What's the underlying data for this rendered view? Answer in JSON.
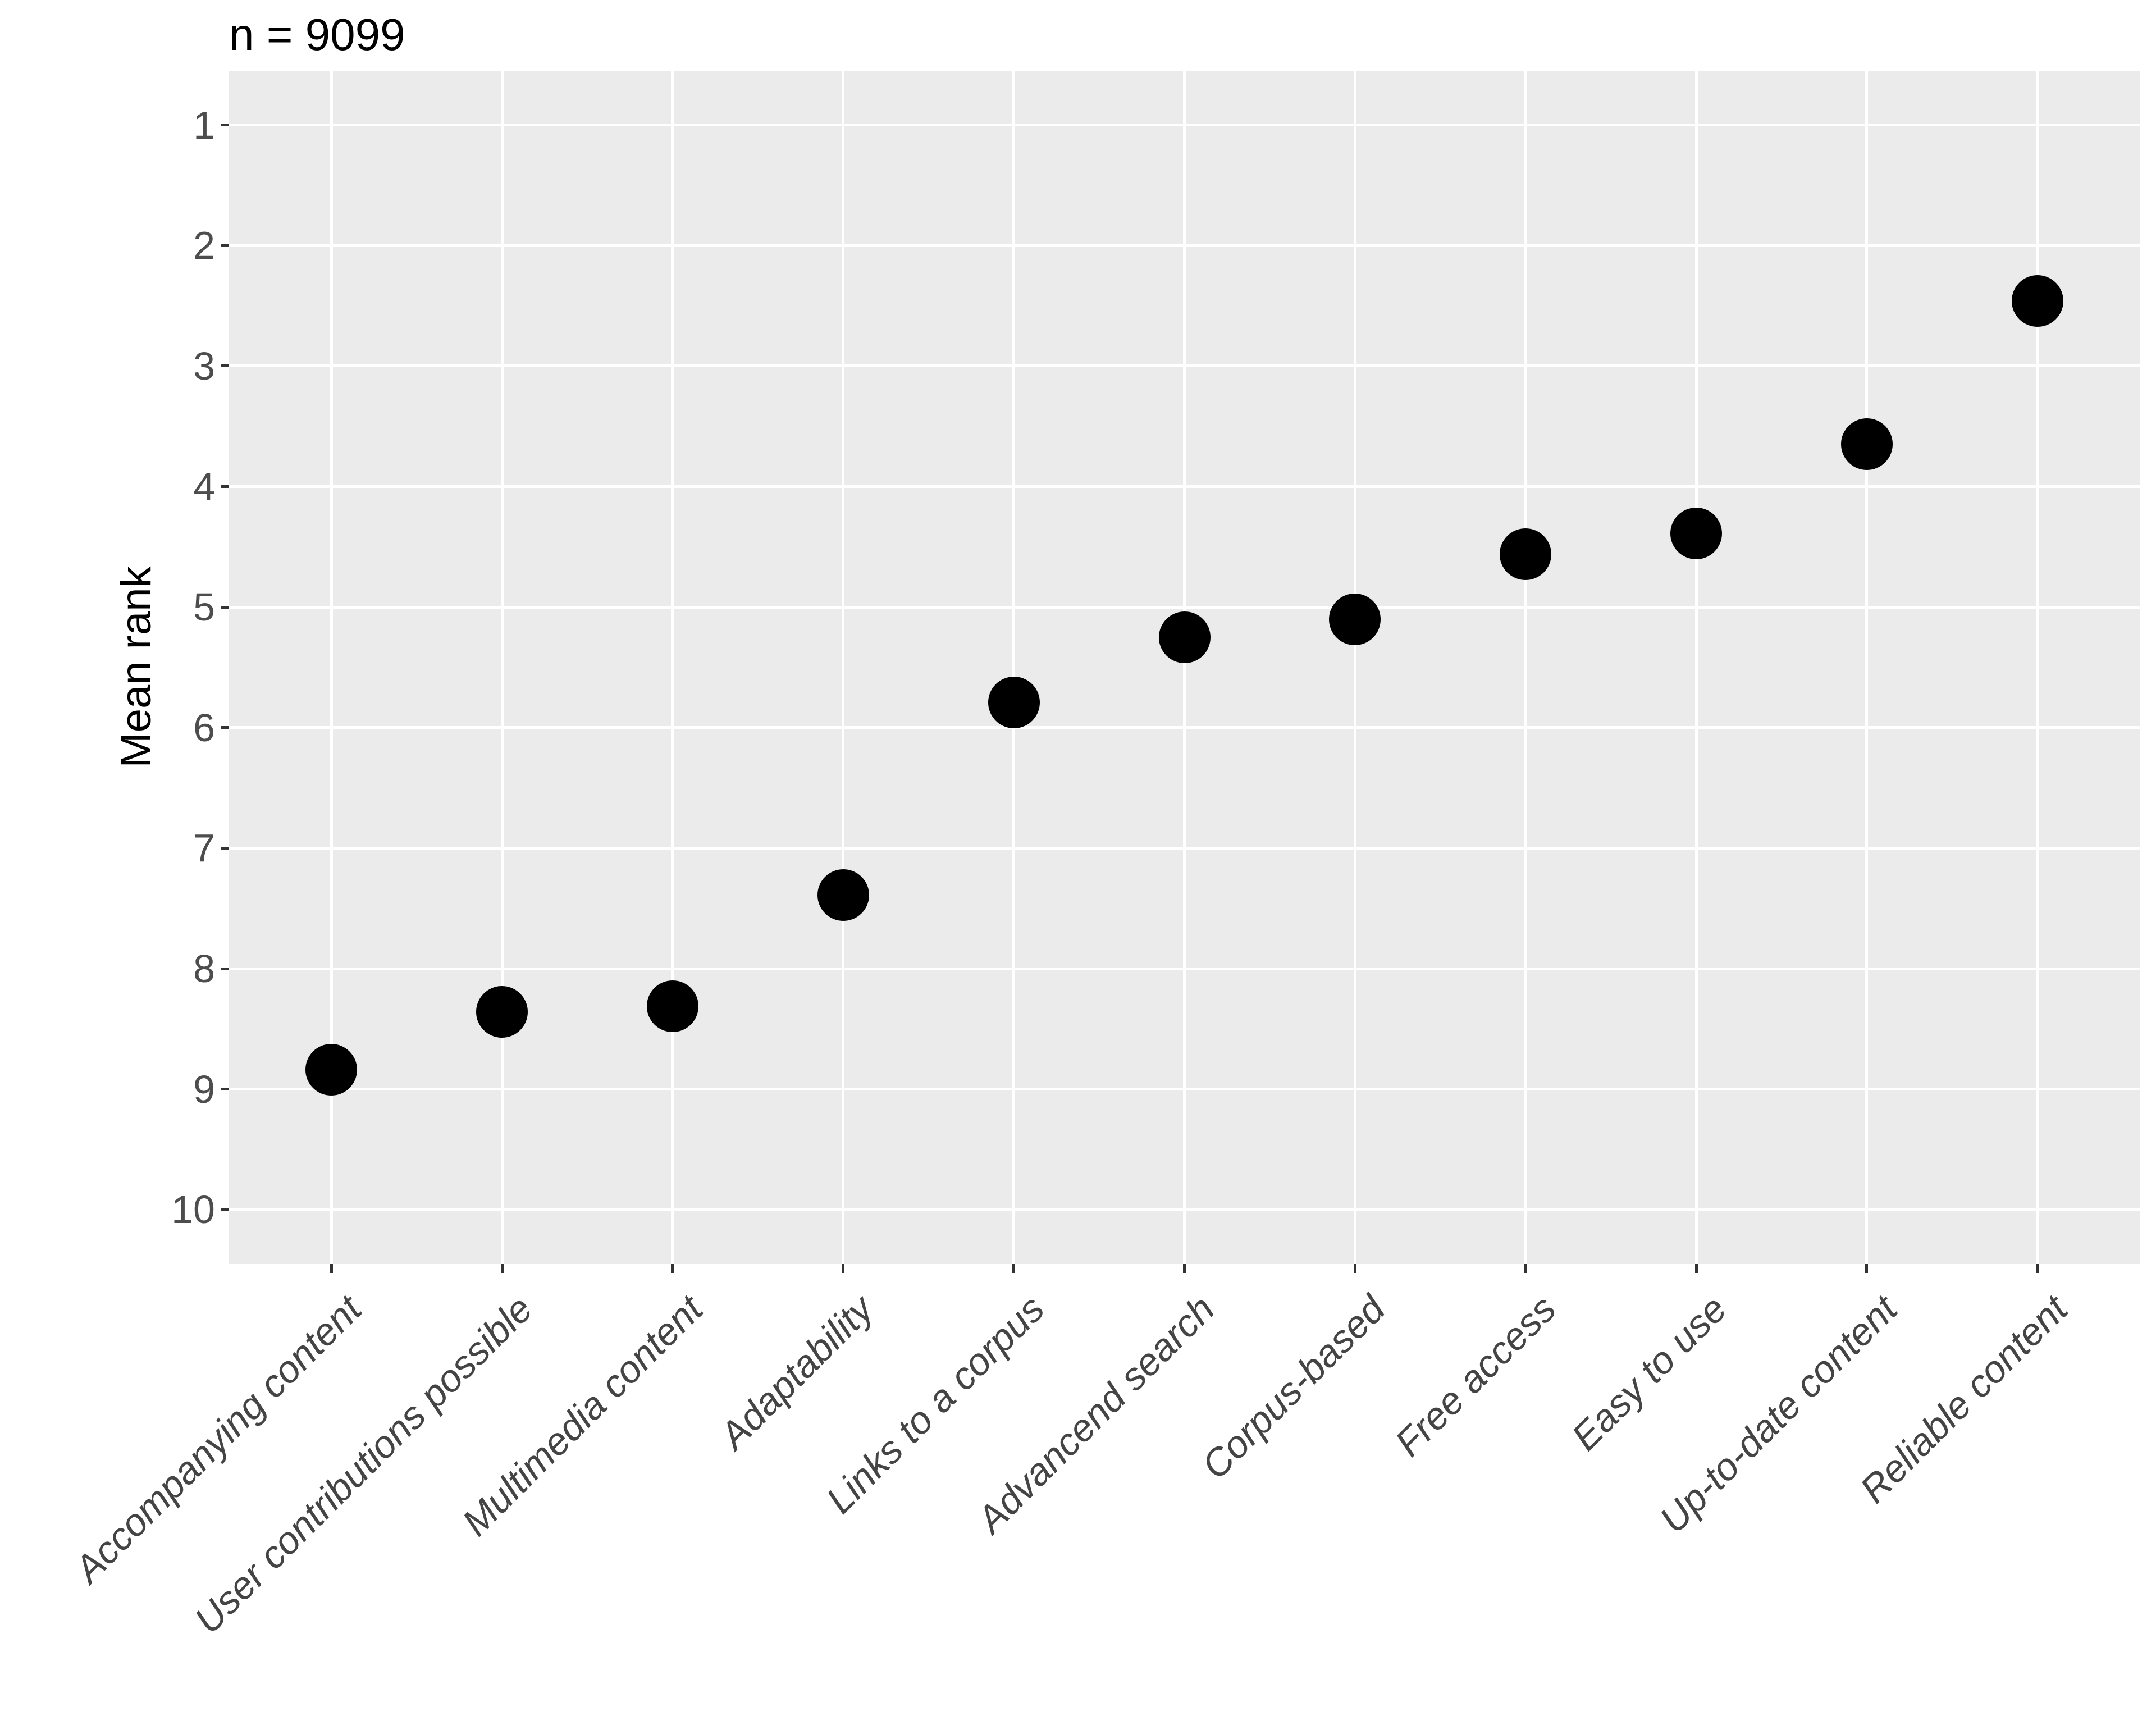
{
  "title": "n = 9099",
  "colors": {
    "page_bg": "#FFFFFF",
    "panel_bg": "#EBEBEB",
    "gridline": "#FFFFFF",
    "dot": "#000000",
    "axis_text": "#4D4D4D",
    "x_label_text": "#444444",
    "axis_title": "#000000",
    "tick_mark": "#333333"
  },
  "chart_data": {
    "type": "scatter",
    "title": "n = 9099",
    "xlabel": "",
    "ylabel": "Mean rank",
    "categories": [
      "Accompanying content",
      "User contributions possible",
      "Multimedia content",
      "Adaptability",
      "Links to a corpus",
      "Advancend search",
      "Corpus-based",
      "Free access",
      "Easy to use",
      "Up-to-date content",
      "Reliable content"
    ],
    "values": [
      8.84,
      8.36,
      8.31,
      7.39,
      5.79,
      5.25,
      5.1,
      4.56,
      4.39,
      3.65,
      2.46
    ],
    "y_ticks": [
      1,
      2,
      3,
      4,
      5,
      6,
      7,
      8,
      9,
      10
    ],
    "ylim": [
      0.55,
      10.45
    ],
    "y_axis_reversed": true,
    "x_label_angle_degrees": 45,
    "x_label_style": "italic",
    "grid": "major white gridlines on gray panel; horizontal at integer ranks, vertical at each category; no minor gridlines",
    "legend": "none",
    "marker": "large solid black circle"
  }
}
